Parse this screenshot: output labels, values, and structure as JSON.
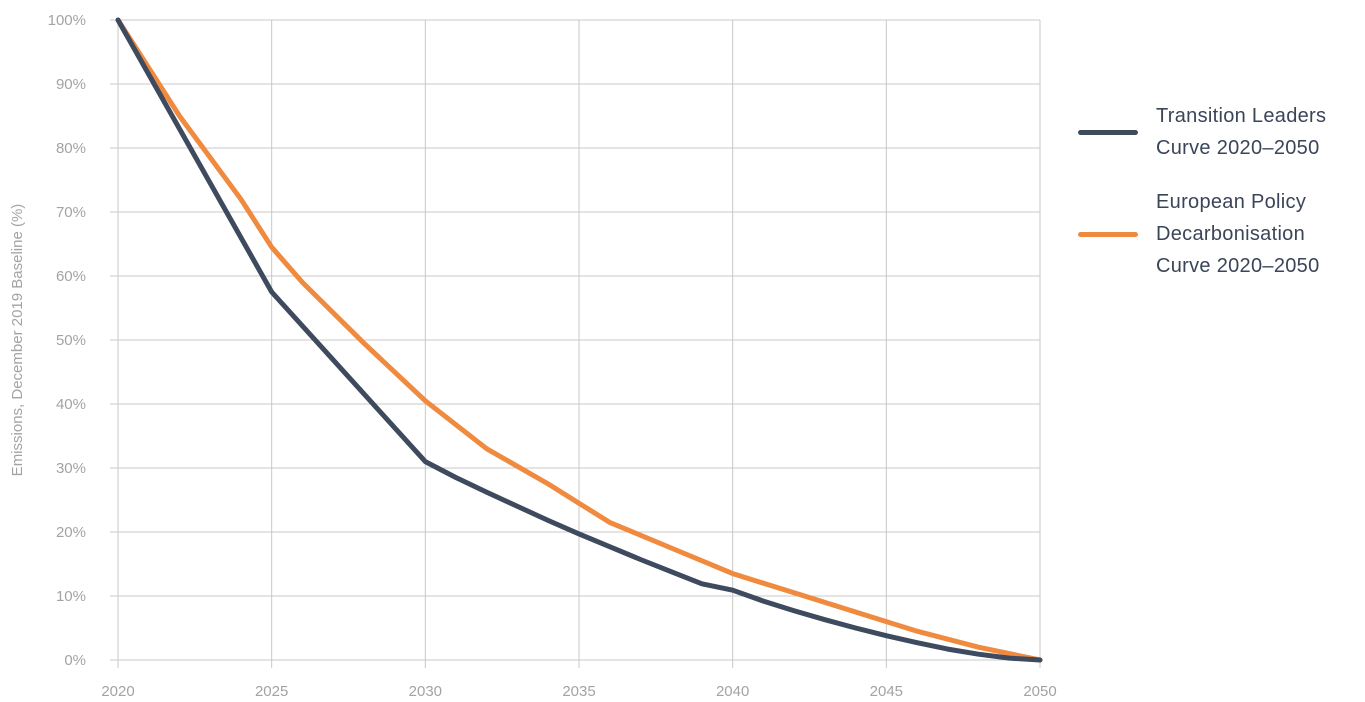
{
  "chart_data": {
    "type": "line",
    "title": "",
    "xlabel": "",
    "ylabel": "Emissions, December 2019 Baseline (%)",
    "xlim": [
      2020,
      2050
    ],
    "ylim": [
      0,
      100
    ],
    "x_ticks": [
      "2020",
      "2025",
      "2030",
      "2035",
      "2040",
      "2045",
      "2050"
    ],
    "y_ticks": [
      "0%",
      "10%",
      "20%",
      "30%",
      "40%",
      "50%",
      "60%",
      "70%",
      "80%",
      "90%",
      "100%"
    ],
    "grid": true,
    "legend_position": "right",
    "series": [
      {
        "name": "Transition Leaders Curve 2020–2050",
        "name_lines": [
          "Transition Leaders",
          "Curve 2020–2050"
        ],
        "color": "#3e4a5d",
        "x": [
          2020,
          2025,
          2030,
          2031,
          2032,
          2033,
          2034,
          2035,
          2036,
          2037,
          2038,
          2039,
          2040,
          2041,
          2042,
          2043,
          2044,
          2045,
          2046,
          2047,
          2048,
          2049,
          2050
        ],
        "y": [
          100,
          57.5,
          31,
          28.5,
          26.2,
          24,
          21.8,
          19.7,
          17.7,
          15.7,
          13.8,
          11.9,
          10.9,
          9.2,
          7.7,
          6.3,
          5,
          3.8,
          2.7,
          1.7,
          0.9,
          0.3,
          0
        ]
      },
      {
        "name": "European Policy Decarbonisation Curve 2020–2050",
        "name_lines": [
          "European Policy",
          "Decarbonisation",
          "Curve 2020–2050"
        ],
        "color": "#ef8a3f",
        "x": [
          2020,
          2022,
          2024,
          2025,
          2026,
          2028,
          2030,
          2032,
          2034,
          2035,
          2036,
          2038,
          2040,
          2042,
          2044,
          2045,
          2046,
          2048,
          2050
        ],
        "y": [
          100,
          85,
          72,
          64.5,
          59,
          49.5,
          40.5,
          33,
          27.5,
          24.5,
          21.5,
          17.5,
          13.5,
          10.5,
          7.5,
          6,
          4.5,
          2,
          0
        ]
      }
    ]
  }
}
